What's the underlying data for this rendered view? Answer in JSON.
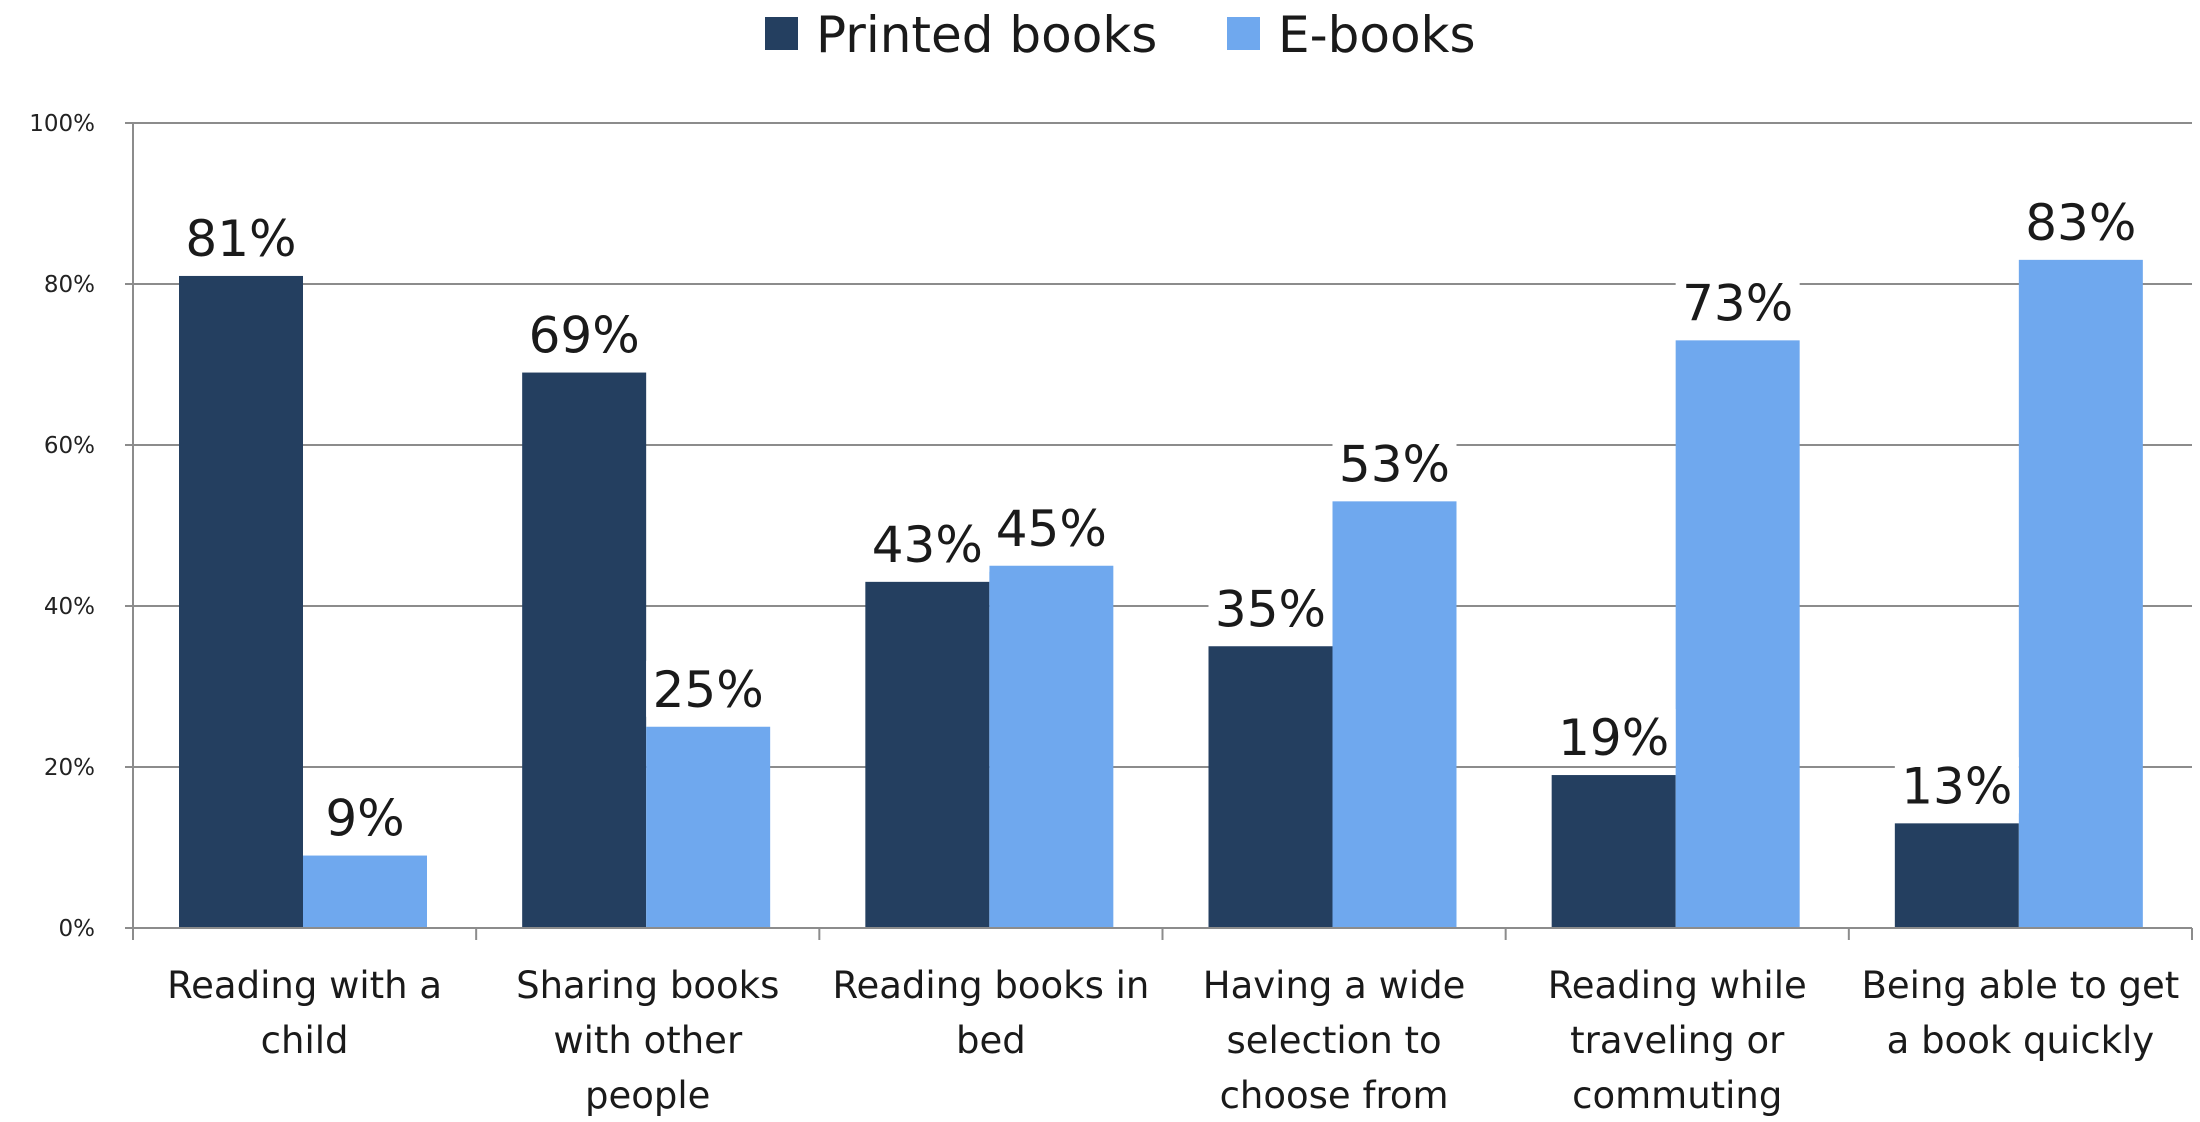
{
  "chart_data": {
    "type": "bar",
    "categories": [
      [
        "Reading with a",
        "child"
      ],
      [
        "Sharing books",
        "with other",
        "people"
      ],
      [
        "Reading books in",
        "bed"
      ],
      [
        "Having a wide",
        "selection to",
        "choose from"
      ],
      [
        "Reading while",
        "traveling or",
        "commuting"
      ],
      [
        "Being able to get",
        "a book quickly"
      ]
    ],
    "series": [
      {
        "name": "Printed books",
        "color": "#243f60",
        "values": [
          81,
          69,
          43,
          35,
          19,
          13
        ],
        "labels": [
          "81%",
          "69%",
          "43%",
          "35%",
          "19%",
          "13%"
        ]
      },
      {
        "name": "E-books",
        "color": "#6fa8ee",
        "values": [
          9,
          25,
          45,
          53,
          73,
          83
        ],
        "labels": [
          "9%",
          "25%",
          "45%",
          "53%",
          "73%",
          "83%"
        ]
      }
    ],
    "yticks": [
      "0%",
      "20%",
      "40%",
      "60%",
      "80%",
      "100%"
    ],
    "ylim": [
      0,
      100
    ],
    "grid": true,
    "legend_position": "top-center",
    "title": "",
    "xlabel": "",
    "ylabel": ""
  }
}
